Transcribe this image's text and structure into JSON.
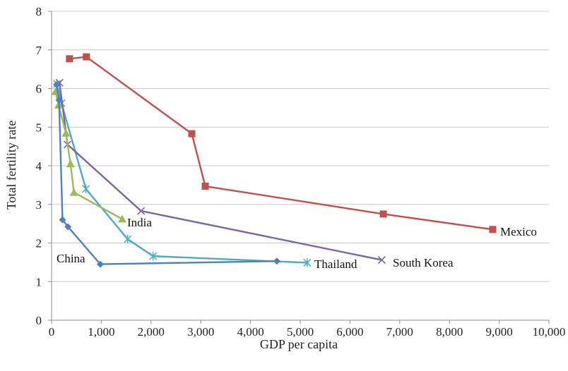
{
  "chart_data": {
    "type": "line",
    "xlabel": "GDP per capita",
    "ylabel": "Total fertility rate",
    "xlim": [
      0,
      10000
    ],
    "ylim": [
      0,
      8
    ],
    "x_ticks": [
      0,
      1000,
      2000,
      3000,
      4000,
      5000,
      6000,
      7000,
      8000,
      9000,
      10000
    ],
    "x_tick_labels": [
      "0",
      "1,000",
      "2,000",
      "3,000",
      "4,000",
      "5,000",
      "6,000",
      "7,000",
      "8,000",
      "9,000",
      "10,000"
    ],
    "y_ticks": [
      0,
      1,
      2,
      3,
      4,
      5,
      6,
      7,
      8
    ],
    "y_tick_labels": [
      "0",
      "1",
      "2",
      "3",
      "4",
      "5",
      "6",
      "7",
      "8"
    ],
    "grid": "horizontal",
    "legend": "none (direct labels)",
    "series": [
      {
        "name": "China",
        "color": "#4F81BD",
        "marker": "diamond",
        "points": [
          [
            100,
            6.1
          ],
          [
            150,
            5.7
          ],
          [
            220,
            2.6
          ],
          [
            330,
            2.42
          ],
          [
            980,
            1.45
          ],
          [
            4530,
            1.53
          ]
        ]
      },
      {
        "name": "Mexico",
        "color": "#C0504D",
        "marker": "square",
        "points": [
          [
            360,
            6.77
          ],
          [
            700,
            6.82
          ],
          [
            2820,
            4.83
          ],
          [
            3090,
            3.47
          ],
          [
            6670,
            2.75
          ],
          [
            8870,
            2.35
          ]
        ]
      },
      {
        "name": "India",
        "color": "#9BBB59",
        "marker": "triangle",
        "points": [
          [
            80,
            5.92
          ],
          [
            140,
            5.57
          ],
          [
            290,
            4.84
          ],
          [
            380,
            4.05
          ],
          [
            450,
            3.31
          ],
          [
            1420,
            2.62
          ]
        ]
      },
      {
        "name": "South Korea",
        "color": "#8064A2",
        "marker": "x",
        "points": [
          [
            160,
            6.15
          ],
          [
            320,
            4.55
          ],
          [
            1800,
            2.83
          ],
          [
            6640,
            1.56
          ]
        ]
      },
      {
        "name": "Thailand",
        "color": "#4BACC6",
        "marker": "asterisk",
        "points": [
          [
            110,
            6.12
          ],
          [
            200,
            5.62
          ],
          [
            690,
            3.4
          ],
          [
            1530,
            2.1
          ],
          [
            2040,
            1.66
          ],
          [
            5140,
            1.49
          ]
        ]
      }
    ]
  }
}
